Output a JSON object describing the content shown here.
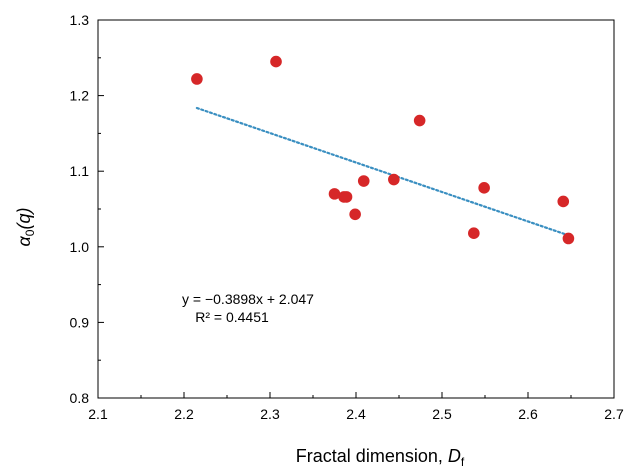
{
  "chart_data": {
    "type": "scatter",
    "title": "",
    "xlabel": {
      "main": "Fractal dimension, ",
      "var": "D",
      "sub": "f"
    },
    "ylabel": {
      "var": "α",
      "sub": "0",
      "rest": "(q)"
    },
    "xlim": [
      2.1,
      2.7
    ],
    "ylim": [
      0.8,
      1.3
    ],
    "x_ticks": [
      "2.1",
      "2.2",
      "2.3",
      "2.4",
      "2.5",
      "2.6",
      "2.7"
    ],
    "y_ticks": [
      "0.8",
      "0.9",
      "1.0",
      "1.1",
      "1.2",
      "1.3"
    ],
    "grid": false,
    "marker_color": "#d62728",
    "trend_color": "#3a8fc1",
    "points": [
      {
        "x": 2.215,
        "y": 1.222
      },
      {
        "x": 2.307,
        "y": 1.245
      },
      {
        "x": 2.375,
        "y": 1.07
      },
      {
        "x": 2.386,
        "y": 1.066
      },
      {
        "x": 2.389,
        "y": 1.066
      },
      {
        "x": 2.399,
        "y": 1.043
      },
      {
        "x": 2.409,
        "y": 1.087
      },
      {
        "x": 2.444,
        "y": 1.089
      },
      {
        "x": 2.474,
        "y": 1.167
      },
      {
        "x": 2.537,
        "y": 1.018
      },
      {
        "x": 2.549,
        "y": 1.078
      },
      {
        "x": 2.641,
        "y": 1.06
      },
      {
        "x": 2.647,
        "y": 1.011
      }
    ],
    "trendline": {
      "slope": -0.3898,
      "intercept": 2.047,
      "x_range": [
        2.215,
        2.647
      ]
    },
    "equation": {
      "line1": "y = −0.3898x + 2.047",
      "line2": "R² = 0.4451"
    }
  }
}
